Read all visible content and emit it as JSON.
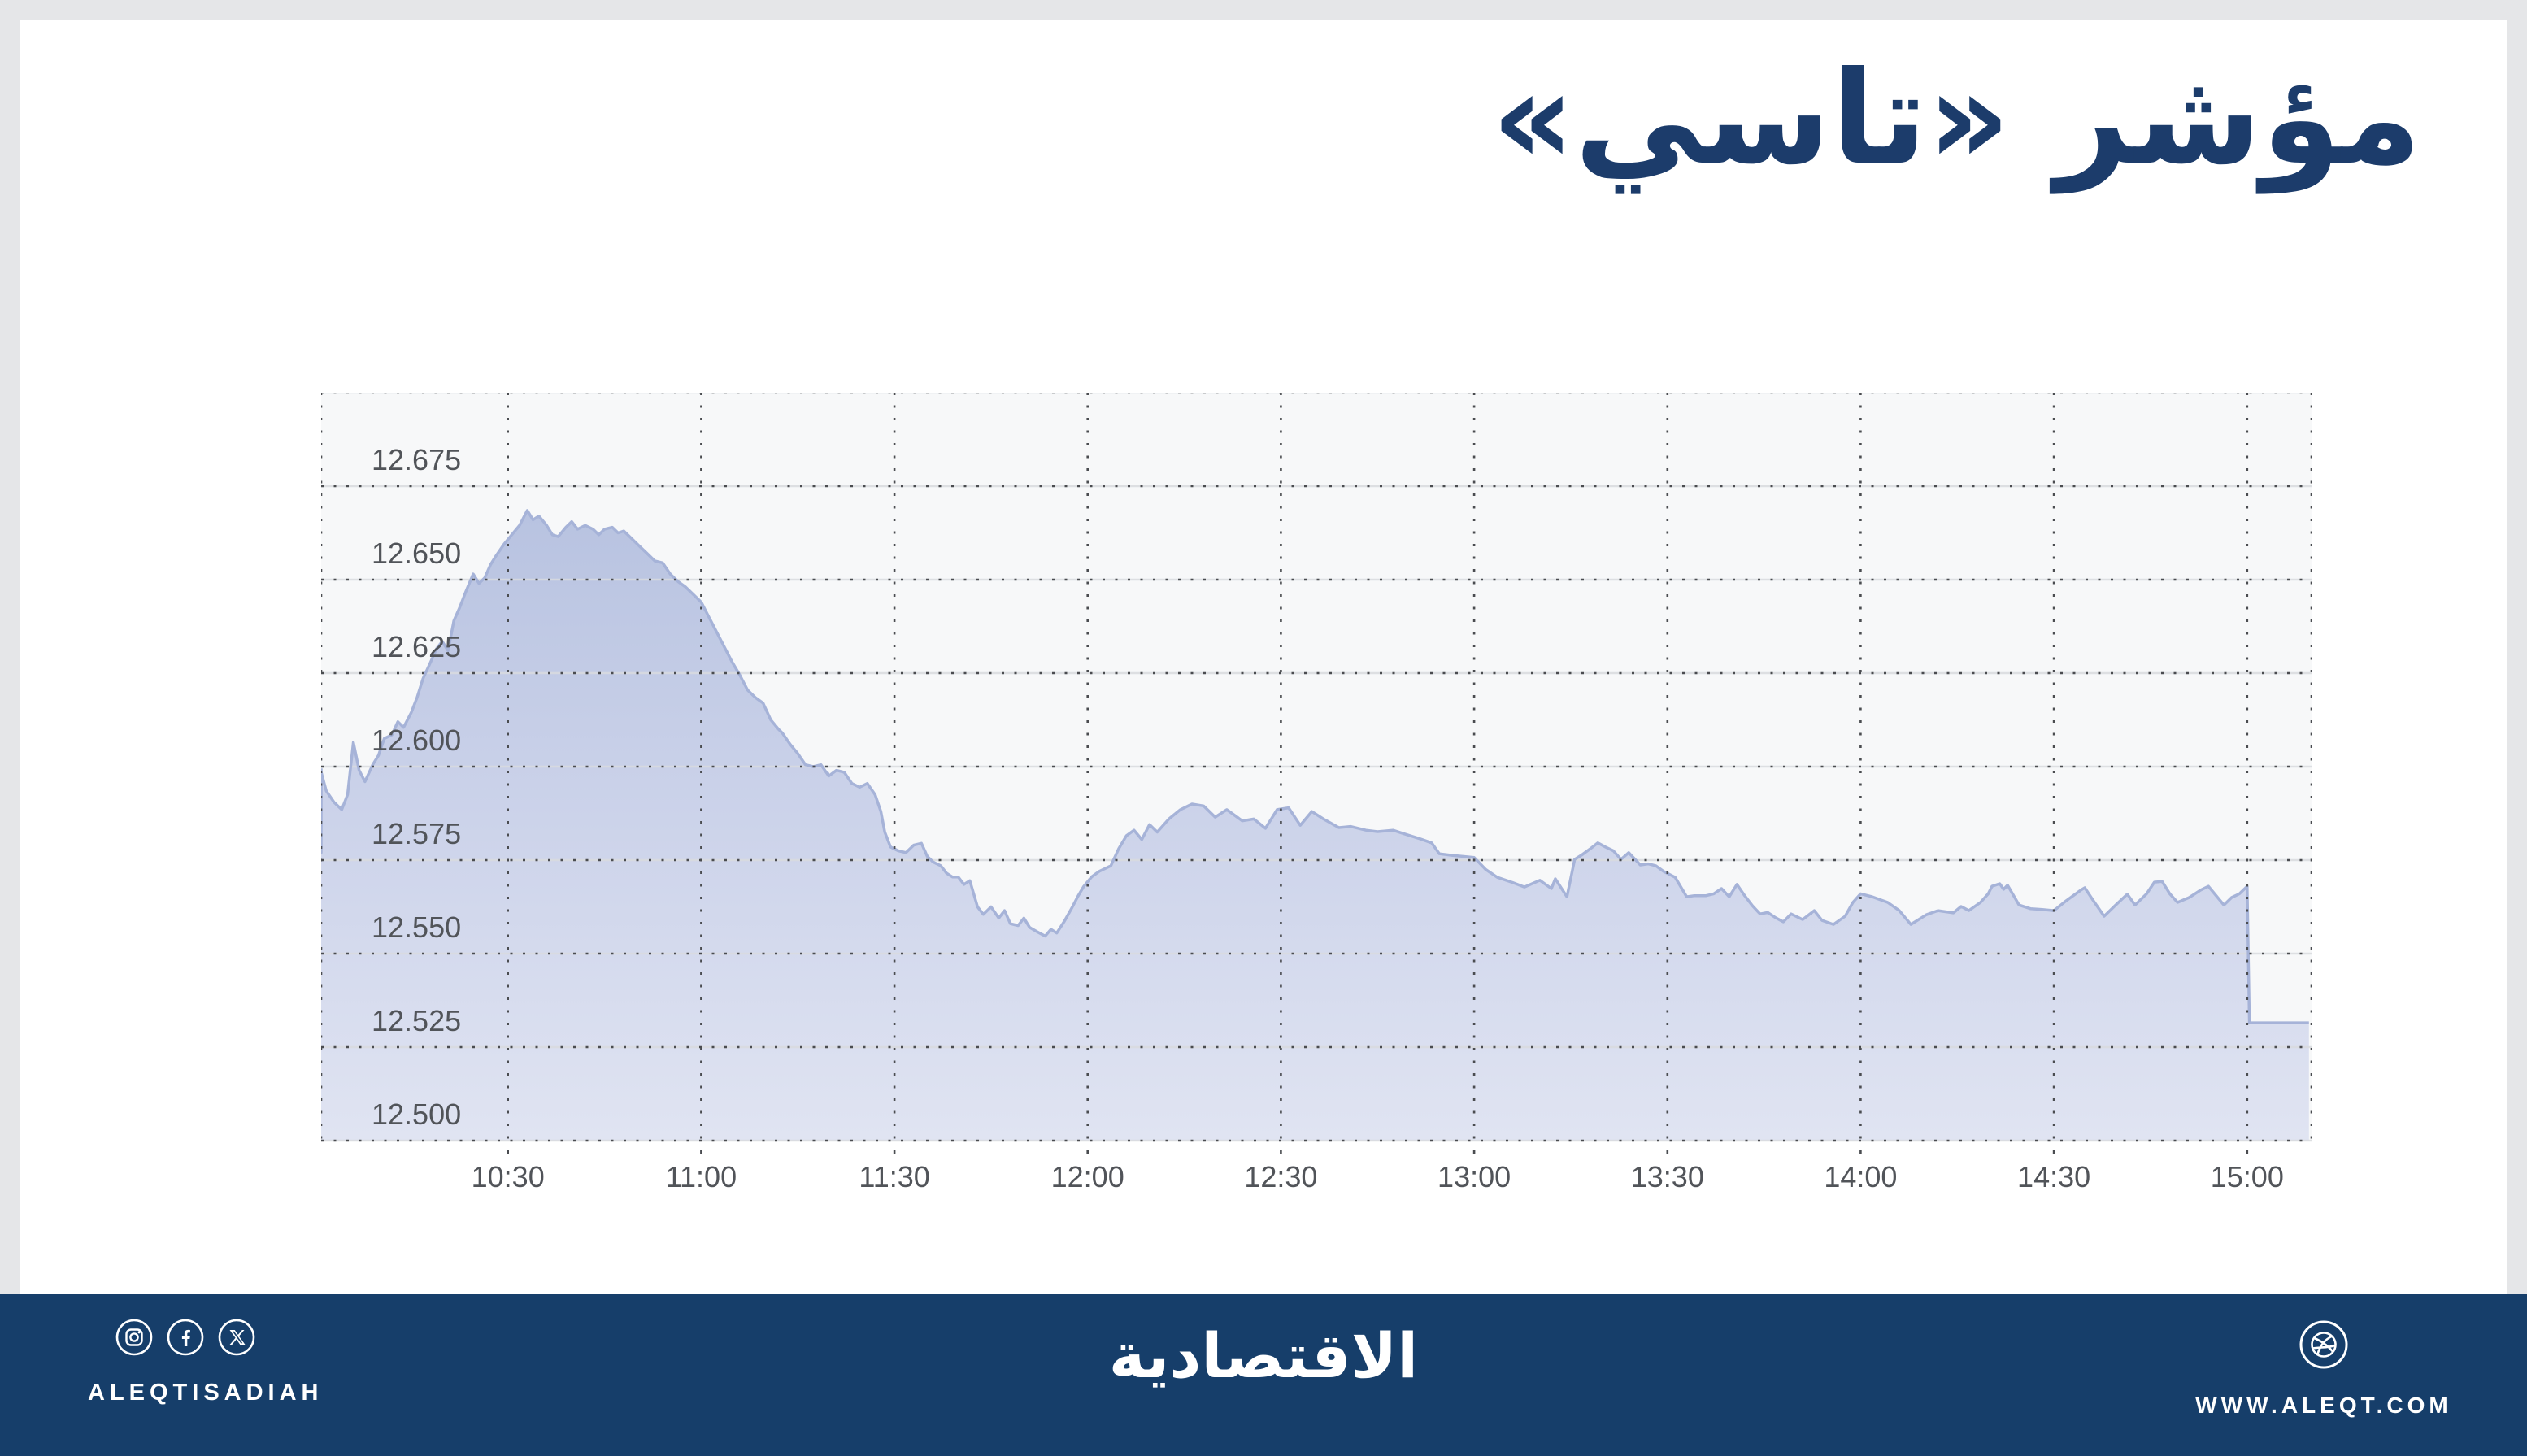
{
  "page": {
    "background": "#e5e6e8",
    "card_background": "#ffffff"
  },
  "header": {
    "title": "مؤشر «تاسي»",
    "title_color": "#1c3c6b"
  },
  "footer": {
    "background": "#163e6a",
    "left": {
      "icons": [
        "instagram-icon",
        "facebook-icon",
        "x-icon"
      ],
      "handle": "ALEQTISADIAH"
    },
    "center": {
      "logo_text": "الاقتصادية"
    },
    "right": {
      "icon": "globe-icon",
      "website": "WWW.ALEQT.COM"
    }
  },
  "chart_data": {
    "type": "area",
    "title": "مؤشر «تاسي» (TASI index intraday)",
    "xlabel": "",
    "ylabel": "",
    "x_axis": {
      "start_hour": 10.0167,
      "end_hour": 15.1667,
      "tick_hours": [
        10.5,
        11.0,
        11.5,
        12.0,
        12.5,
        13.0,
        13.5,
        14.0,
        14.5,
        15.0
      ],
      "labels": [
        "10:30",
        "11:00",
        "11:30",
        "12:00",
        "12:30",
        "13:00",
        "13:30",
        "14:00",
        "14:30",
        "15:00"
      ]
    },
    "y_axis": {
      "min": 12.5,
      "max": 12.7,
      "step": 0.025,
      "labels": [
        "12.675",
        "12.650",
        "12.625",
        "12.600",
        "12.575",
        "12.550",
        "12.525",
        "12.500"
      ],
      "label_values": [
        12.675,
        12.65,
        12.625,
        12.6,
        12.575,
        12.55,
        12.525,
        12.5
      ]
    },
    "grid": true,
    "colors": {
      "plot_bg": "#f7f8f9",
      "grid_solid": "#d9dbdf",
      "grid_dots": "#4a4c50",
      "axis_text": "#515459",
      "area_top": "#b7c2e0",
      "area_mid": "#ccd3ea",
      "area_bottom": "#e0e4f2",
      "line": "#a6b3d8"
    },
    "series": [
      {
        "name": "TASI",
        "points": [
          [
            10.01,
            12.5995
          ],
          [
            10.013,
            12.577
          ],
          [
            10.017,
            12.5985
          ],
          [
            10.03,
            12.5935
          ],
          [
            10.05,
            12.5905
          ],
          [
            10.07,
            12.5885
          ],
          [
            10.085,
            12.5925
          ],
          [
            10.1,
            12.6065
          ],
          [
            10.115,
            12.599
          ],
          [
            10.13,
            12.596
          ],
          [
            10.15,
            12.6005
          ],
          [
            10.165,
            12.603
          ],
          [
            10.18,
            12.6075
          ],
          [
            10.2,
            12.6085
          ],
          [
            10.215,
            12.612
          ],
          [
            10.23,
            12.6105
          ],
          [
            10.25,
            12.6145
          ],
          [
            10.265,
            12.6185
          ],
          [
            10.28,
            12.6235
          ],
          [
            10.3,
            12.628
          ],
          [
            10.315,
            12.6315
          ],
          [
            10.33,
            12.6335
          ],
          [
            10.345,
            12.631
          ],
          [
            10.36,
            12.639
          ],
          [
            10.375,
            12.6425
          ],
          [
            10.39,
            12.6465
          ],
          [
            10.41,
            12.6515
          ],
          [
            10.425,
            12.649
          ],
          [
            10.44,
            12.6505
          ],
          [
            10.455,
            12.654
          ],
          [
            10.47,
            12.6565
          ],
          [
            10.49,
            12.6595
          ],
          [
            10.51,
            12.662
          ],
          [
            10.53,
            12.6645
          ],
          [
            10.55,
            12.6685
          ],
          [
            10.565,
            12.666
          ],
          [
            10.58,
            12.667
          ],
          [
            10.6,
            12.6645
          ],
          [
            10.615,
            12.662
          ],
          [
            10.63,
            12.6615
          ],
          [
            10.65,
            12.664
          ],
          [
            10.665,
            12.6655
          ],
          [
            10.68,
            12.6635
          ],
          [
            10.7,
            12.6645
          ],
          [
            10.72,
            12.6635
          ],
          [
            10.735,
            12.662
          ],
          [
            10.75,
            12.6635
          ],
          [
            10.77,
            12.664
          ],
          [
            10.785,
            12.6625
          ],
          [
            10.8,
            12.663
          ],
          [
            10.82,
            12.661
          ],
          [
            10.84,
            12.659
          ],
          [
            10.86,
            12.657
          ],
          [
            10.88,
            12.655
          ],
          [
            10.9,
            12.6545
          ],
          [
            10.92,
            12.6515
          ],
          [
            10.94,
            12.6495
          ],
          [
            10.96,
            12.648
          ],
          [
            10.98,
            12.646
          ],
          [
            11.0,
            12.644
          ],
          [
            11.02,
            12.64
          ],
          [
            11.04,
            12.636
          ],
          [
            11.06,
            12.632
          ],
          [
            11.08,
            12.628
          ],
          [
            11.1,
            12.6245
          ],
          [
            11.12,
            12.6205
          ],
          [
            11.14,
            12.6185
          ],
          [
            11.16,
            12.617
          ],
          [
            11.18,
            12.6125
          ],
          [
            11.2,
            12.61
          ],
          [
            11.21,
            12.609
          ],
          [
            11.23,
            12.606
          ],
          [
            11.25,
            12.6035
          ],
          [
            11.27,
            12.6005
          ],
          [
            11.29,
            12.6
          ],
          [
            11.31,
            12.6005
          ],
          [
            11.33,
            12.5975
          ],
          [
            11.35,
            12.599
          ],
          [
            11.37,
            12.5985
          ],
          [
            11.39,
            12.5955
          ],
          [
            11.41,
            12.5945
          ],
          [
            11.43,
            12.5955
          ],
          [
            11.45,
            12.5925
          ],
          [
            11.465,
            12.588
          ],
          [
            11.475,
            12.5825
          ],
          [
            11.49,
            12.5785
          ],
          [
            11.51,
            12.5775
          ],
          [
            11.53,
            12.577
          ],
          [
            11.55,
            12.579
          ],
          [
            11.57,
            12.5795
          ],
          [
            11.585,
            12.576
          ],
          [
            11.6,
            12.5745
          ],
          [
            11.62,
            12.5735
          ],
          [
            11.635,
            12.5715
          ],
          [
            11.65,
            12.5705
          ],
          [
            11.665,
            12.5705
          ],
          [
            11.68,
            12.5685
          ],
          [
            11.695,
            12.5695
          ],
          [
            11.715,
            12.5625
          ],
          [
            11.73,
            12.5605
          ],
          [
            11.75,
            12.5625
          ],
          [
            11.77,
            12.5595
          ],
          [
            11.785,
            12.5615
          ],
          [
            11.8,
            12.558
          ],
          [
            11.82,
            12.5575
          ],
          [
            11.835,
            12.5595
          ],
          [
            11.85,
            12.557
          ],
          [
            11.87,
            12.5558
          ],
          [
            11.89,
            12.5547
          ],
          [
            11.905,
            12.5565
          ],
          [
            11.92,
            12.5555
          ],
          [
            11.94,
            12.5587
          ],
          [
            11.96,
            12.5624
          ],
          [
            11.975,
            12.5654
          ],
          [
            11.99,
            12.568
          ],
          [
            12.01,
            12.5705
          ],
          [
            12.03,
            12.572
          ],
          [
            12.06,
            12.5735
          ],
          [
            12.08,
            12.578
          ],
          [
            12.1,
            12.5815
          ],
          [
            12.12,
            12.583
          ],
          [
            12.14,
            12.5805
          ],
          [
            12.16,
            12.5845
          ],
          [
            12.18,
            12.5825
          ],
          [
            12.21,
            12.586
          ],
          [
            12.24,
            12.5885
          ],
          [
            12.27,
            12.59
          ],
          [
            12.3,
            12.5895
          ],
          [
            12.33,
            12.5865
          ],
          [
            12.36,
            12.5885
          ],
          [
            12.4,
            12.5855
          ],
          [
            12.43,
            12.586
          ],
          [
            12.46,
            12.5835
          ],
          [
            12.49,
            12.5885
          ],
          [
            12.52,
            12.589
          ],
          [
            12.55,
            12.5843
          ],
          [
            12.58,
            12.588
          ],
          [
            12.61,
            12.586
          ],
          [
            12.65,
            12.5837
          ],
          [
            12.68,
            12.584
          ],
          [
            12.72,
            12.583
          ],
          [
            12.75,
            12.5826
          ],
          [
            12.79,
            12.583
          ],
          [
            12.82,
            12.582
          ],
          [
            12.86,
            12.5807
          ],
          [
            12.89,
            12.5796
          ],
          [
            12.91,
            12.5767
          ],
          [
            12.94,
            12.5763
          ],
          [
            12.97,
            12.576
          ],
          [
            13.0,
            12.5757
          ],
          [
            13.03,
            12.5725
          ],
          [
            13.06,
            12.5704
          ],
          [
            13.1,
            12.569
          ],
          [
            13.13,
            12.5678
          ],
          [
            13.17,
            12.5696
          ],
          [
            13.2,
            12.5674
          ],
          [
            13.21,
            12.57
          ],
          [
            13.24,
            12.5652
          ],
          [
            13.26,
            12.5752
          ],
          [
            13.28,
            12.5765
          ],
          [
            13.3,
            12.578
          ],
          [
            13.32,
            12.5796
          ],
          [
            13.34,
            12.5785
          ],
          [
            13.36,
            12.5775
          ],
          [
            13.38,
            12.5752
          ],
          [
            13.4,
            12.577
          ],
          [
            13.43,
            12.5737
          ],
          [
            13.45,
            12.574
          ],
          [
            13.47,
            12.5735
          ],
          [
            13.49,
            12.572
          ],
          [
            13.52,
            12.5704
          ],
          [
            13.55,
            12.5652
          ],
          [
            13.57,
            12.5655
          ],
          [
            13.6,
            12.5655
          ],
          [
            13.62,
            12.566
          ],
          [
            13.64,
            12.5674
          ],
          [
            13.66,
            12.5652
          ],
          [
            13.68,
            12.5685
          ],
          [
            13.7,
            12.5655
          ],
          [
            13.72,
            12.5628
          ],
          [
            13.74,
            12.5606
          ],
          [
            13.76,
            12.561
          ],
          [
            13.78,
            12.5596
          ],
          [
            13.8,
            12.5585
          ],
          [
            13.82,
            12.5606
          ],
          [
            13.85,
            12.5591
          ],
          [
            13.88,
            12.5615
          ],
          [
            13.9,
            12.5589
          ],
          [
            13.93,
            12.5578
          ],
          [
            13.96,
            12.56
          ],
          [
            13.98,
            12.5637
          ],
          [
            14.0,
            12.566
          ],
          [
            14.03,
            12.5652
          ],
          [
            14.07,
            12.5637
          ],
          [
            14.1,
            12.5615
          ],
          [
            14.13,
            12.5578
          ],
          [
            14.17,
            12.5604
          ],
          [
            14.2,
            12.5615
          ],
          [
            14.24,
            12.5609
          ],
          [
            14.26,
            12.5626
          ],
          [
            14.28,
            12.5615
          ],
          [
            14.31,
            12.5637
          ],
          [
            14.33,
            12.566
          ],
          [
            14.34,
            12.568
          ],
          [
            14.36,
            12.5687
          ],
          [
            14.37,
            12.5672
          ],
          [
            14.38,
            12.5683
          ],
          [
            14.41,
            12.563
          ],
          [
            14.44,
            12.562
          ],
          [
            14.47,
            12.5618
          ],
          [
            14.5,
            12.5615
          ],
          [
            14.53,
            12.564
          ],
          [
            14.57,
            12.567
          ],
          [
            14.58,
            12.5676
          ],
          [
            14.6,
            12.5645
          ],
          [
            14.63,
            12.56
          ],
          [
            14.66,
            12.563
          ],
          [
            14.69,
            12.5659
          ],
          [
            14.71,
            12.563
          ],
          [
            14.74,
            12.566
          ],
          [
            14.76,
            12.5691
          ],
          [
            14.78,
            12.5693
          ],
          [
            14.8,
            12.566
          ],
          [
            14.82,
            12.5637
          ],
          [
            14.85,
            12.565
          ],
          [
            14.88,
            12.567
          ],
          [
            14.9,
            12.568
          ],
          [
            14.92,
            12.5655
          ],
          [
            14.94,
            12.563
          ],
          [
            14.96,
            12.565
          ],
          [
            14.98,
            12.566
          ],
          [
            15.0,
            12.568
          ],
          [
            15.006,
            12.5315
          ],
          [
            15.16,
            12.5315
          ]
        ]
      }
    ],
    "annotations": []
  }
}
